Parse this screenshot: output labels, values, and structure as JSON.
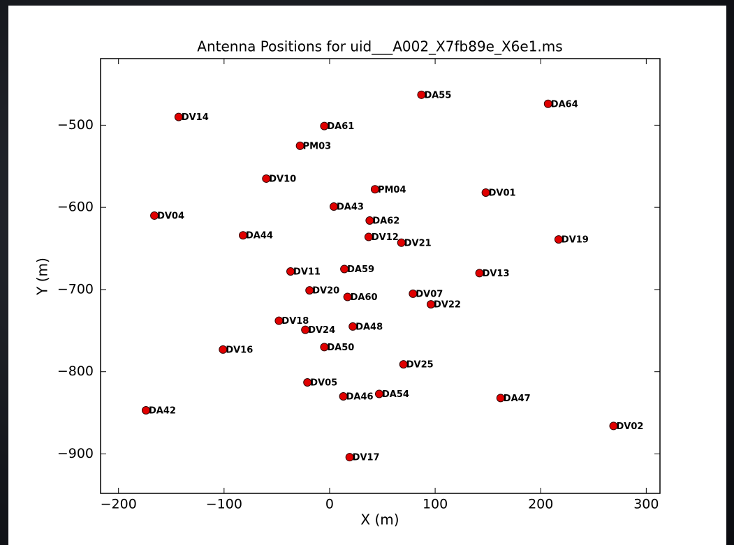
{
  "chart_data": {
    "type": "scatter",
    "title": "Antenna Positions for uid___A002_X7fb89e_X6e1.ms",
    "x_label": "X (m)",
    "y_label": "Y (m)",
    "color": "#e00000",
    "edge_color": "#300000",
    "labels": [
      "DA55",
      "DA64",
      "DV14",
      "DA61",
      "PM03",
      "DV10",
      "PM04",
      "DV01",
      "DA43",
      "DV04",
      "DA62",
      "DA44",
      "DV12",
      "DV21",
      "DV19",
      "DV11",
      "DA59",
      "DV13",
      "DV20",
      "DA60",
      "DV07",
      "DV22",
      "DV18",
      "DV24",
      "DA48",
      "DV16",
      "DA50",
      "DV25",
      "DV05",
      "DA46",
      "DA54",
      "DA47",
      "DA42",
      "DV02",
      "DV17"
    ],
    "x": [
      87,
      207,
      -143,
      -5,
      -28,
      -60,
      43,
      148,
      4,
      -166,
      38,
      -82,
      37,
      68,
      217,
      -37,
      14,
      142,
      -19,
      17,
      79,
      96,
      -48,
      -23,
      22,
      -101,
      -5,
      70,
      -21,
      13,
      47,
      162,
      -174,
      269,
      19
    ],
    "values": [
      -463,
      -474,
      -490,
      -501,
      -525,
      -565,
      -578,
      -582,
      -599,
      -610,
      -616,
      -634,
      -636,
      -643,
      -639,
      -678,
      -675,
      -680,
      -701,
      -709,
      -705,
      -718,
      -738,
      -749,
      -745,
      -773,
      -770,
      -791,
      -813,
      -830,
      -827,
      -832,
      -847,
      -866,
      -904
    ],
    "xlim": [
      -217,
      313
    ],
    "ylim": [
      -948,
      -419
    ],
    "xticks": [
      {
        "value": -200,
        "label": "−200"
      },
      {
        "value": -100,
        "label": "−100"
      },
      0,
      100,
      200,
      300
    ],
    "yticks": [
      {
        "value": -500,
        "label": "−500"
      },
      {
        "value": -600,
        "label": "−600"
      },
      {
        "value": -700,
        "label": "−700"
      },
      {
        "value": -800,
        "label": "−800"
      },
      {
        "value": -900,
        "label": "−900"
      }
    ],
    "grid": false
  }
}
